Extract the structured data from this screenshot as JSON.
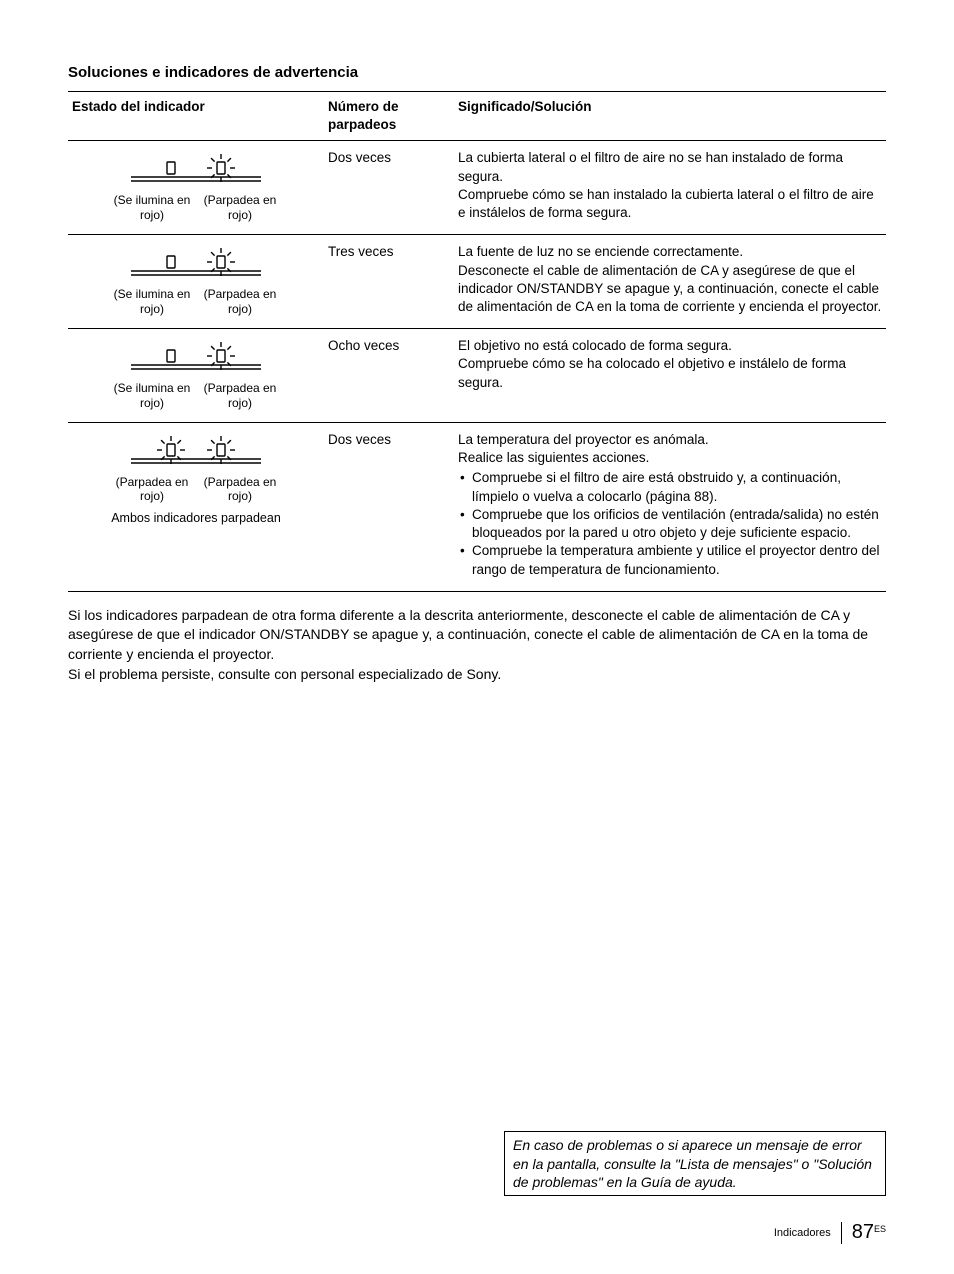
{
  "section_title": "Soluciones e indicadores de advertencia",
  "table": {
    "headers": {
      "status": "Estado del indicador",
      "flashes": "Número de parpadeos",
      "meaning": "Significado/Solución"
    },
    "rows": [
      {
        "left_label": "(Se ilumina en rojo)",
        "right_label": "(Parpadea en rojo)",
        "extra_note": "",
        "flashes": "Dos veces",
        "meaning_intro": "La cubierta lateral o el filtro de aire no se han instalado de forma segura.",
        "meaning_body": "Compruebe cómo se han instalado la cubierta lateral o el filtro de aire e instálelos de forma segura.",
        "left_blink": false,
        "right_blink": true
      },
      {
        "left_label": "(Se ilumina en rojo)",
        "right_label": "(Parpadea en rojo)",
        "extra_note": "",
        "flashes": "Tres veces",
        "meaning_intro": "La fuente de luz no se enciende correctamente.",
        "meaning_body": "Desconecte el cable de alimentación de CA y asegúrese de que el indicador ON/STANDBY se apague y, a continuación, conecte el cable de alimentación de CA en la toma de corriente y encienda el proyector.",
        "left_blink": false,
        "right_blink": true
      },
      {
        "left_label": "(Se ilumina en rojo)",
        "right_label": "(Parpadea en rojo)",
        "extra_note": "",
        "flashes": "Ocho veces",
        "meaning_intro": "El objetivo no está colocado de forma segura.",
        "meaning_body": "Compruebe cómo se ha colocado el objetivo e instálelo de forma segura.",
        "left_blink": false,
        "right_blink": true
      },
      {
        "left_label": "(Parpadea en rojo)",
        "right_label": "(Parpadea en rojo)",
        "extra_note": "Ambos indicadores parpadean",
        "flashes": "Dos veces",
        "meaning_intro": "La temperatura del proyector es anómala.",
        "meaning_body": "Realice las siguientes acciones.",
        "left_blink": true,
        "right_blink": true,
        "bullets": [
          "Compruebe si el filtro de aire está obstruido y, a continuación, límpielo o vuelva a colocarlo (página 88).",
          "Compruebe que los orificios de ventilación (entrada/salida) no estén bloqueados por la pared u otro objeto y deje suficiente espacio.",
          "Compruebe la temperatura ambiente y utilice el proyector dentro del rango de temperatura de funcionamiento."
        ]
      }
    ]
  },
  "after_text_1": "Si los indicadores parpadean de otra forma diferente a la descrita anteriormente, desconecte el cable de alimentación de CA y asegúrese de que el indicador ON/STANDBY se apague y, a continuación, conecte el cable de alimentación de CA en la toma de corriente y encienda el proyector.",
  "after_text_2": "Si el problema persiste, consulte con personal especializado de Sony.",
  "note_box": "En caso de problemas o si aparece un mensaje de error en la pantalla, consulte la \"Lista de mensajes\" o \"Solución de problemas\" en la Guía de ayuda.",
  "footer": {
    "section": "Indicadores",
    "page": "87",
    "lang": "ES"
  },
  "icon": {
    "stroke": "#000000",
    "platform_fill": "#ffffff"
  }
}
